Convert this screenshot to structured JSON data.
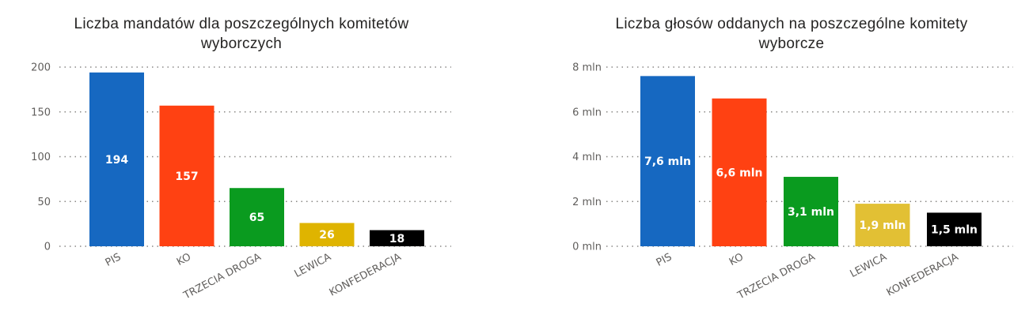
{
  "chart_data": [
    {
      "type": "bar",
      "title": "Liczba mandatów dla poszczególnych komitetów wyborczych",
      "title_lines": [
        "Liczba mandatów dla poszczególnych komitetów",
        "wyborczych"
      ],
      "categories": [
        "PIS",
        "KO",
        "TRZECIA DROGA",
        "LEWICA",
        "KONFEDERACJA"
      ],
      "values": [
        194,
        157,
        65,
        26,
        18
      ],
      "data_labels": [
        "194",
        "157",
        "65",
        "26",
        "18"
      ],
      "colors": [
        "#1668c1",
        "#ff4112",
        "#0a9b1f",
        "#dfb400",
        "#000000"
      ],
      "ylim": [
        0,
        200
      ],
      "yticks": [
        0,
        50,
        100,
        150,
        200
      ],
      "ytick_labels": [
        "0",
        "50",
        "100",
        "150",
        "200"
      ],
      "grid": true,
      "xlabel": "",
      "ylabel": ""
    },
    {
      "type": "bar",
      "title": "Liczba głosów oddanych na poszczególne komitety wyborcze",
      "title_lines": [
        "Liczba głosów oddanych na poszczególne komitety",
        "wyborcze"
      ],
      "categories": [
        "PIS",
        "KO",
        "TRZECIA DROGA",
        "LEWICA",
        "KONFEDERACJA"
      ],
      "values": [
        7.6,
        6.6,
        3.1,
        1.9,
        1.5
      ],
      "data_labels": [
        "7,6 mln",
        "6,6 mln",
        "3,1 mln",
        "1,9 mln",
        "1,5 mln"
      ],
      "colors": [
        "#1668c1",
        "#ff4112",
        "#0a9b1f",
        "#e2c034",
        "#000000"
      ],
      "ylim": [
        0,
        8
      ],
      "yticks": [
        0,
        2,
        4,
        6,
        8
      ],
      "ytick_labels": [
        "0 mln",
        "2 mln",
        "4 mln",
        "6 mln",
        "8 mln"
      ],
      "grid": true,
      "xlabel": "",
      "ylabel": ""
    }
  ]
}
